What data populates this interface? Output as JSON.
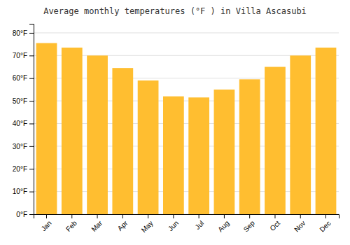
{
  "chart_data": {
    "type": "bar",
    "title": "Average monthly temperatures (°F ) in Villa Ascasubi",
    "categories": [
      "Jan",
      "Feb",
      "Mar",
      "Apr",
      "May",
      "Jun",
      "Jul",
      "Aug",
      "Sep",
      "Oct",
      "Nov",
      "Dec"
    ],
    "values": [
      75.5,
      73.5,
      70.0,
      64.5,
      59.0,
      52.0,
      51.5,
      55.0,
      59.5,
      65.0,
      70.0,
      73.5
    ],
    "color": "#FFBE30",
    "ylim": [
      0,
      84
    ],
    "yticks": [
      {
        "value": 0,
        "label": "0°F"
      },
      {
        "value": 10,
        "label": "10°F"
      },
      {
        "value": 20,
        "label": "20°F"
      },
      {
        "value": 30,
        "label": "30°F"
      },
      {
        "value": 40,
        "label": "40°F"
      },
      {
        "value": 50,
        "label": "50°F"
      },
      {
        "value": 60,
        "label": "60°F"
      },
      {
        "value": 70,
        "label": "70°F"
      },
      {
        "value": 80,
        "label": "80°F"
      }
    ],
    "grid": true
  }
}
